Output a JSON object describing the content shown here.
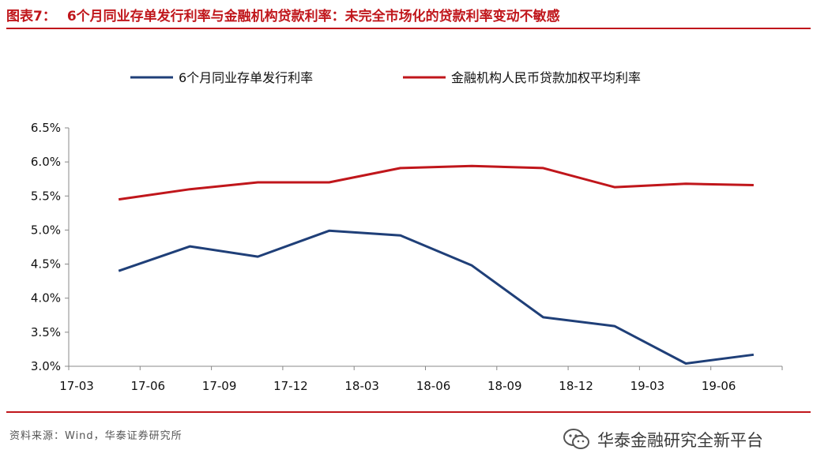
{
  "header": {
    "figure_no": "图表7：",
    "title": "6个月同业存单发行利率与金融机构贷款利率：未完全市场化的贷款利率变动不敏感"
  },
  "footer": {
    "source": "资料来源：Wind，华泰证券研究所",
    "brand": "华泰金融研究全新平台",
    "brand_icon": "wechat-icon"
  },
  "chart_data": {
    "type": "line",
    "title": "6个月同业存单发行利率与金融机构贷款利率：未完全市场化的贷款利率变动不敏感",
    "xlabel": "",
    "ylabel": "",
    "categories": [
      "17-03",
      "17-06",
      "17-09",
      "17-12",
      "18-03",
      "18-06",
      "18-09",
      "18-12",
      "19-03",
      "19-06"
    ],
    "ylim": [
      3.0,
      6.5
    ],
    "yticks": [
      "3.0%",
      "3.5%",
      "4.0%",
      "4.5%",
      "5.0%",
      "5.5%",
      "6.0%",
      "6.5%"
    ],
    "grid": false,
    "legend_position": "top",
    "series": [
      {
        "name": "6个月同业存单发行利率",
        "color": "#1f3f78",
        "points": [
          [
            0.2,
            4.4
          ],
          [
            1.2,
            4.76
          ],
          [
            2.15,
            4.61
          ],
          [
            3.15,
            4.99
          ],
          [
            4.15,
            4.92
          ],
          [
            5.15,
            4.48
          ],
          [
            6.15,
            3.72
          ],
          [
            7.15,
            3.59
          ],
          [
            8.15,
            3.04
          ],
          [
            9.1,
            3.17
          ]
        ]
      },
      {
        "name": "金融机构人民币贷款加权平均利率",
        "color": "#c0161b",
        "points": [
          [
            0.2,
            5.45
          ],
          [
            1.2,
            5.6
          ],
          [
            2.15,
            5.7
          ],
          [
            3.15,
            5.7
          ],
          [
            4.15,
            5.91
          ],
          [
            5.15,
            5.94
          ],
          [
            6.15,
            5.91
          ],
          [
            7.15,
            5.63
          ],
          [
            8.15,
            5.68
          ],
          [
            9.1,
            5.66
          ]
        ]
      }
    ]
  }
}
